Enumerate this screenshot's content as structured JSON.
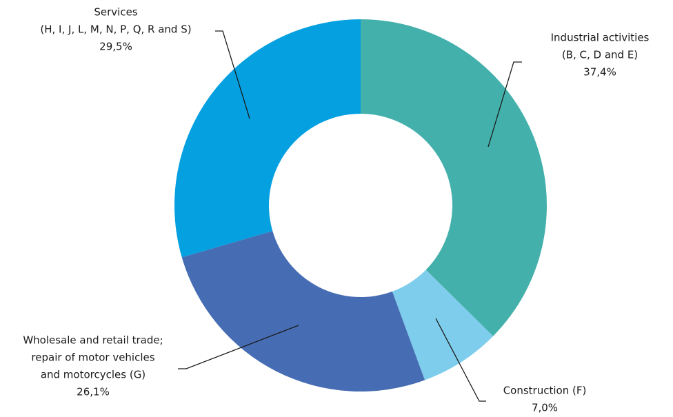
{
  "chart_data": {
    "type": "donut",
    "categories": [
      [
        "Industrial activities",
        "(B, C, D and E)"
      ],
      [
        "Construction (F)"
      ],
      [
        "Wholesale and retail trade;",
        "repair of motor vehicles",
        "and motorcycles (G)"
      ],
      [
        "Services",
        "(H, I, J, L, M, N, P, Q, R and S)"
      ]
    ],
    "values": [
      37.4,
      7.0,
      26.1,
      29.5
    ],
    "value_labels": [
      "37,4%",
      "7,0%",
      "26,1%",
      "29,5%"
    ],
    "colors": [
      "#44b0ac",
      "#7fcdec",
      "#466db3",
      "#04a0e0"
    ]
  }
}
